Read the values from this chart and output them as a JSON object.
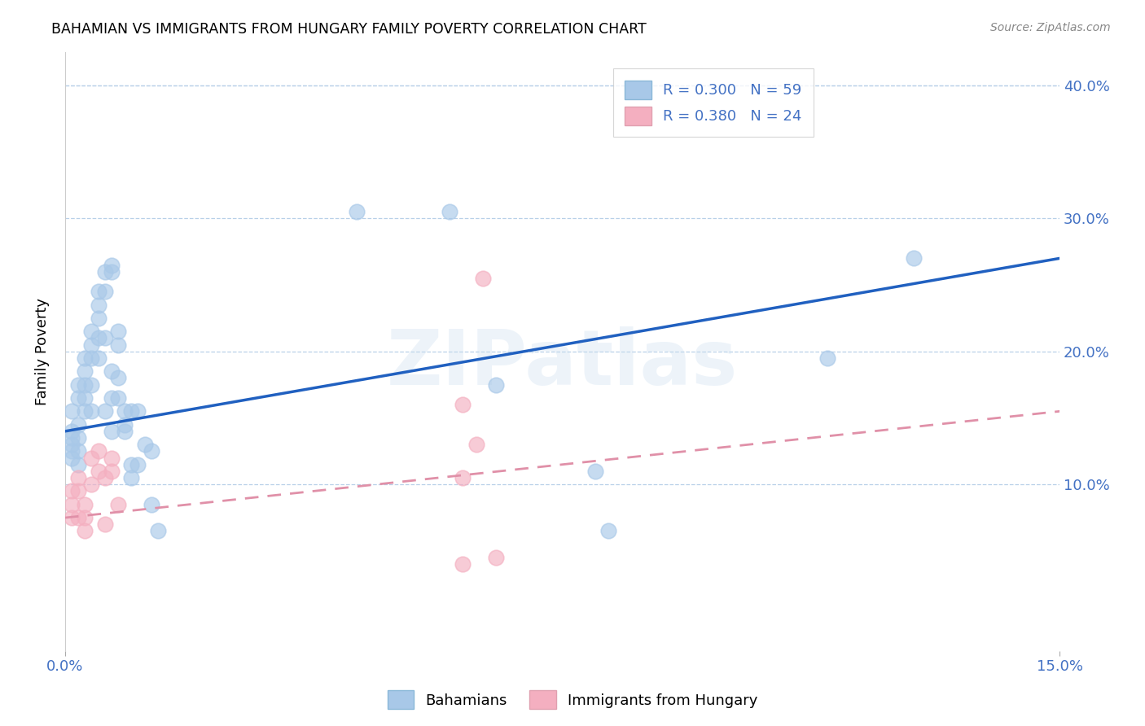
{
  "title": "BAHAMIAN VS IMMIGRANTS FROM HUNGARY FAMILY POVERTY CORRELATION CHART",
  "source": "Source: ZipAtlas.com",
  "ylabel": "Family Poverty",
  "x_min": 0.0,
  "x_max": 0.15,
  "y_min": -0.025,
  "y_max": 0.425,
  "y_ticks": [
    0.0,
    0.1,
    0.2,
    0.3,
    0.4
  ],
  "y_tick_labels": [
    "",
    "10.0%",
    "20.0%",
    "30.0%",
    "40.0%"
  ],
  "bahamian_color": "#a8c8e8",
  "hungary_color": "#f4afc0",
  "bahamian_line_color": "#2060c0",
  "hungary_line_color": "#e090a8",
  "watermark": "ZIPatlas",
  "bahamian_x": [
    0.001,
    0.001,
    0.001,
    0.001,
    0.001,
    0.001,
    0.002,
    0.002,
    0.002,
    0.002,
    0.002,
    0.002,
    0.003,
    0.003,
    0.003,
    0.003,
    0.003,
    0.004,
    0.004,
    0.004,
    0.004,
    0.004,
    0.005,
    0.005,
    0.005,
    0.005,
    0.005,
    0.006,
    0.006,
    0.006,
    0.006,
    0.007,
    0.007,
    0.007,
    0.007,
    0.007,
    0.008,
    0.008,
    0.008,
    0.008,
    0.009,
    0.009,
    0.009,
    0.01,
    0.01,
    0.01,
    0.011,
    0.011,
    0.012,
    0.013,
    0.013,
    0.014,
    0.044,
    0.058,
    0.065,
    0.08,
    0.082,
    0.115,
    0.128
  ],
  "bahamian_y": [
    0.135,
    0.155,
    0.14,
    0.13,
    0.125,
    0.12,
    0.175,
    0.165,
    0.145,
    0.135,
    0.125,
    0.115,
    0.195,
    0.185,
    0.175,
    0.165,
    0.155,
    0.215,
    0.205,
    0.195,
    0.175,
    0.155,
    0.245,
    0.235,
    0.225,
    0.21,
    0.195,
    0.26,
    0.245,
    0.21,
    0.155,
    0.265,
    0.26,
    0.185,
    0.165,
    0.14,
    0.215,
    0.205,
    0.18,
    0.165,
    0.155,
    0.145,
    0.14,
    0.155,
    0.115,
    0.105,
    0.155,
    0.115,
    0.13,
    0.125,
    0.085,
    0.065,
    0.305,
    0.305,
    0.175,
    0.11,
    0.065,
    0.195,
    0.27
  ],
  "hungary_x": [
    0.001,
    0.001,
    0.001,
    0.002,
    0.002,
    0.002,
    0.003,
    0.003,
    0.003,
    0.004,
    0.004,
    0.005,
    0.005,
    0.006,
    0.006,
    0.007,
    0.007,
    0.008,
    0.06,
    0.06,
    0.062,
    0.063,
    0.065,
    0.06
  ],
  "hungary_y": [
    0.095,
    0.085,
    0.075,
    0.105,
    0.095,
    0.075,
    0.085,
    0.075,
    0.065,
    0.12,
    0.1,
    0.125,
    0.11,
    0.105,
    0.07,
    0.12,
    0.11,
    0.085,
    0.16,
    0.105,
    0.13,
    0.255,
    0.045,
    0.04
  ]
}
